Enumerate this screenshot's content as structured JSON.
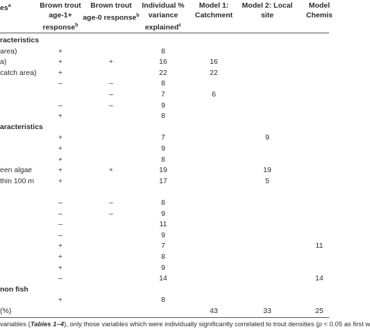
{
  "table": {
    "header": [
      {
        "lines": [
          "es"
        ],
        "sup": "a"
      },
      {
        "lines": [
          "Brown trout",
          "age-1+",
          "response"
        ],
        "sup": "b"
      },
      {
        "lines": [
          "Brown trout",
          "age-0 response"
        ],
        "sup": "b"
      },
      {
        "lines": [
          "Individual %",
          "variance",
          "explained"
        ],
        "sup": "c"
      },
      {
        "lines": [
          "Model 1:",
          "Catchment"
        ]
      },
      {
        "lines": [
          "Model 2: Local",
          "site"
        ]
      },
      {
        "lines": [
          "Model",
          "Chemis"
        ]
      }
    ],
    "rows": [
      {
        "section": "racteristics"
      },
      {
        "cells": [
          "area)",
          "+",
          null,
          "8",
          null,
          null,
          null
        ]
      },
      {
        "cells": [
          "a)",
          "+",
          "+",
          "16",
          "16",
          null,
          null
        ]
      },
      {
        "cells": [
          "catch area)",
          "+",
          null,
          "22",
          "22",
          null,
          null
        ]
      },
      {
        "cells": [
          null,
          "–",
          "–",
          "8",
          null,
          null,
          null
        ]
      },
      {
        "cells": [
          null,
          null,
          "–",
          "7",
          "6",
          null,
          null
        ]
      },
      {
        "cells": [
          null,
          "–",
          "–",
          "9",
          null,
          null,
          null
        ]
      },
      {
        "cells": [
          null,
          "+",
          null,
          "8",
          null,
          null,
          null
        ]
      },
      {
        "section": "aracteristics"
      },
      {
        "cells": [
          null,
          "+",
          null,
          "7",
          null,
          "9",
          null
        ]
      },
      {
        "cells": [
          null,
          "+",
          null,
          "9",
          null,
          null,
          null
        ]
      },
      {
        "cells": [
          null,
          "+",
          null,
          "8",
          null,
          null,
          null
        ]
      },
      {
        "cells": [
          "een algae",
          "+",
          "+",
          "19",
          null,
          "19",
          null
        ]
      },
      {
        "cells": [
          "thin 100 m",
          "+",
          null,
          "17",
          null,
          "5",
          null
        ]
      },
      {
        "cells": [
          null,
          null,
          null,
          null,
          null,
          null,
          null
        ]
      },
      {
        "cells": [
          null,
          "–",
          "–",
          "8",
          null,
          null,
          null
        ]
      },
      {
        "cells": [
          null,
          "–",
          "–",
          "9",
          null,
          null,
          null
        ]
      },
      {
        "cells": [
          null,
          "–",
          null,
          "11",
          null,
          null,
          null
        ]
      },
      {
        "cells": [
          null,
          "–",
          null,
          "9",
          null,
          null,
          null
        ]
      },
      {
        "cells": [
          null,
          "+",
          null,
          "7",
          null,
          null,
          "11"
        ]
      },
      {
        "cells": [
          null,
          "+",
          null,
          "8",
          null,
          null,
          null
        ]
      },
      {
        "cells": [
          null,
          "+",
          null,
          "9",
          null,
          null,
          null
        ]
      },
      {
        "cells": [
          null,
          "–",
          null,
          "14",
          null,
          null,
          "14"
        ]
      },
      {
        "section": "non fish"
      },
      {
        "cells": [
          null,
          "+",
          null,
          "8",
          null,
          null,
          null
        ]
      },
      {
        "cells": [
          "(%)",
          null,
          null,
          null,
          "43",
          "33",
          "25"
        ]
      }
    ],
    "footer": [
      {
        "text": "variables (",
        "italic": false
      },
      {
        "text": "Tables 1–4",
        "italic": true
      },
      {
        "text": "), only those variables which were individually significantly correlated to trout densities (",
        "italic": false
      },
      {
        "text": "p",
        "italic": true
      },
      {
        "text": " < 0.05 as first w",
        "italic": false
      }
    ]
  }
}
